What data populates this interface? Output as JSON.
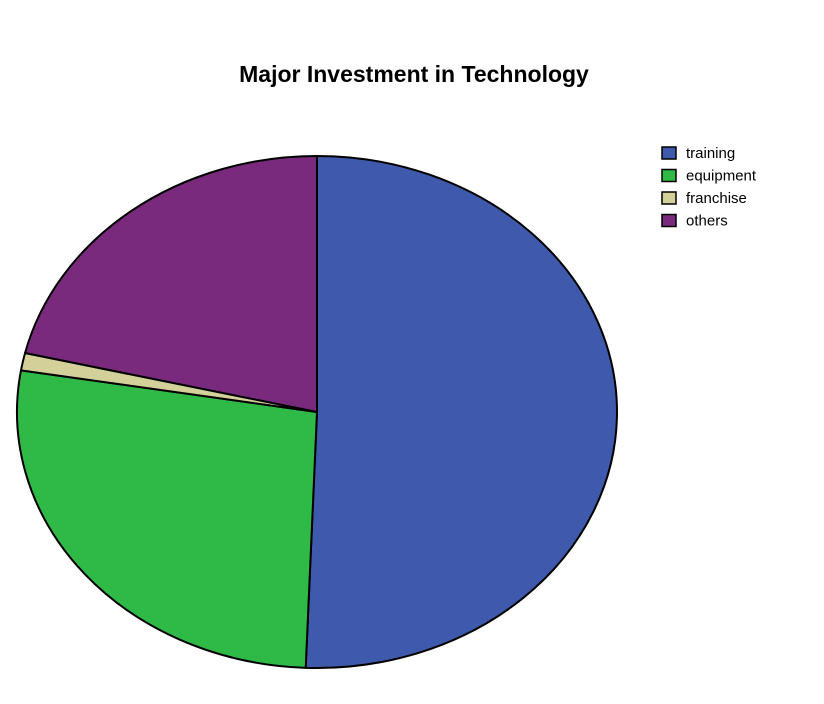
{
  "chart_data": {
    "type": "pie",
    "title": "Major Investment in Technology",
    "categories": [
      "training",
      "equipment",
      "franchise",
      "others"
    ],
    "values": [
      50.6,
      27.0,
      1.1,
      21.3
    ],
    "colors": [
      "#3f5aad",
      "#2fba48",
      "#d3d09a",
      "#7a2a7c"
    ],
    "legend_position": "top-right"
  }
}
